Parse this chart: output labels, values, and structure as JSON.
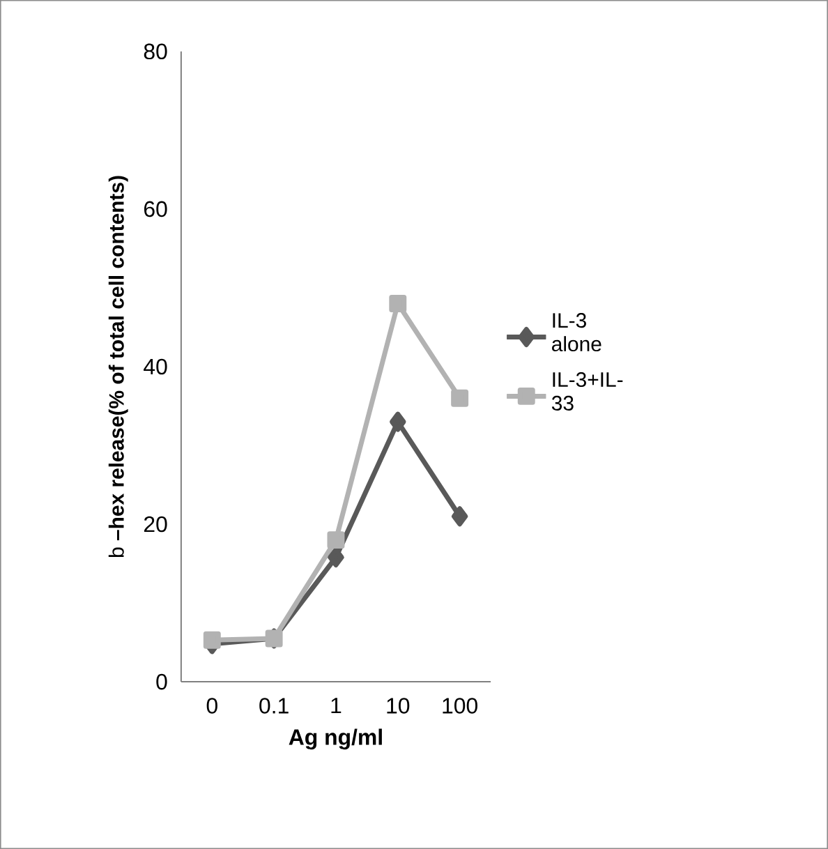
{
  "chart_data": {
    "type": "line",
    "xlabel": "Ag ng/ml",
    "ylabel": "b **–hex release(% of total cell contents)**",
    "categories": [
      "0",
      "0.1",
      "1",
      "10",
      "100"
    ],
    "series": [
      {
        "name": "IL-3 alone",
        "color": "#595959",
        "marker": "diamond",
        "values": [
          4.8,
          5.5,
          15.8,
          33,
          21
        ]
      },
      {
        "name": "IL-3+IL-33",
        "color": "#b2b2b2",
        "marker": "square",
        "values": [
          5.3,
          5.5,
          18,
          48,
          36
        ]
      }
    ],
    "ylim": [
      0,
      80
    ],
    "yticks": [
      0,
      20,
      40,
      60,
      80
    ],
    "grid": false,
    "legend": "right",
    "line_style": "solid"
  }
}
